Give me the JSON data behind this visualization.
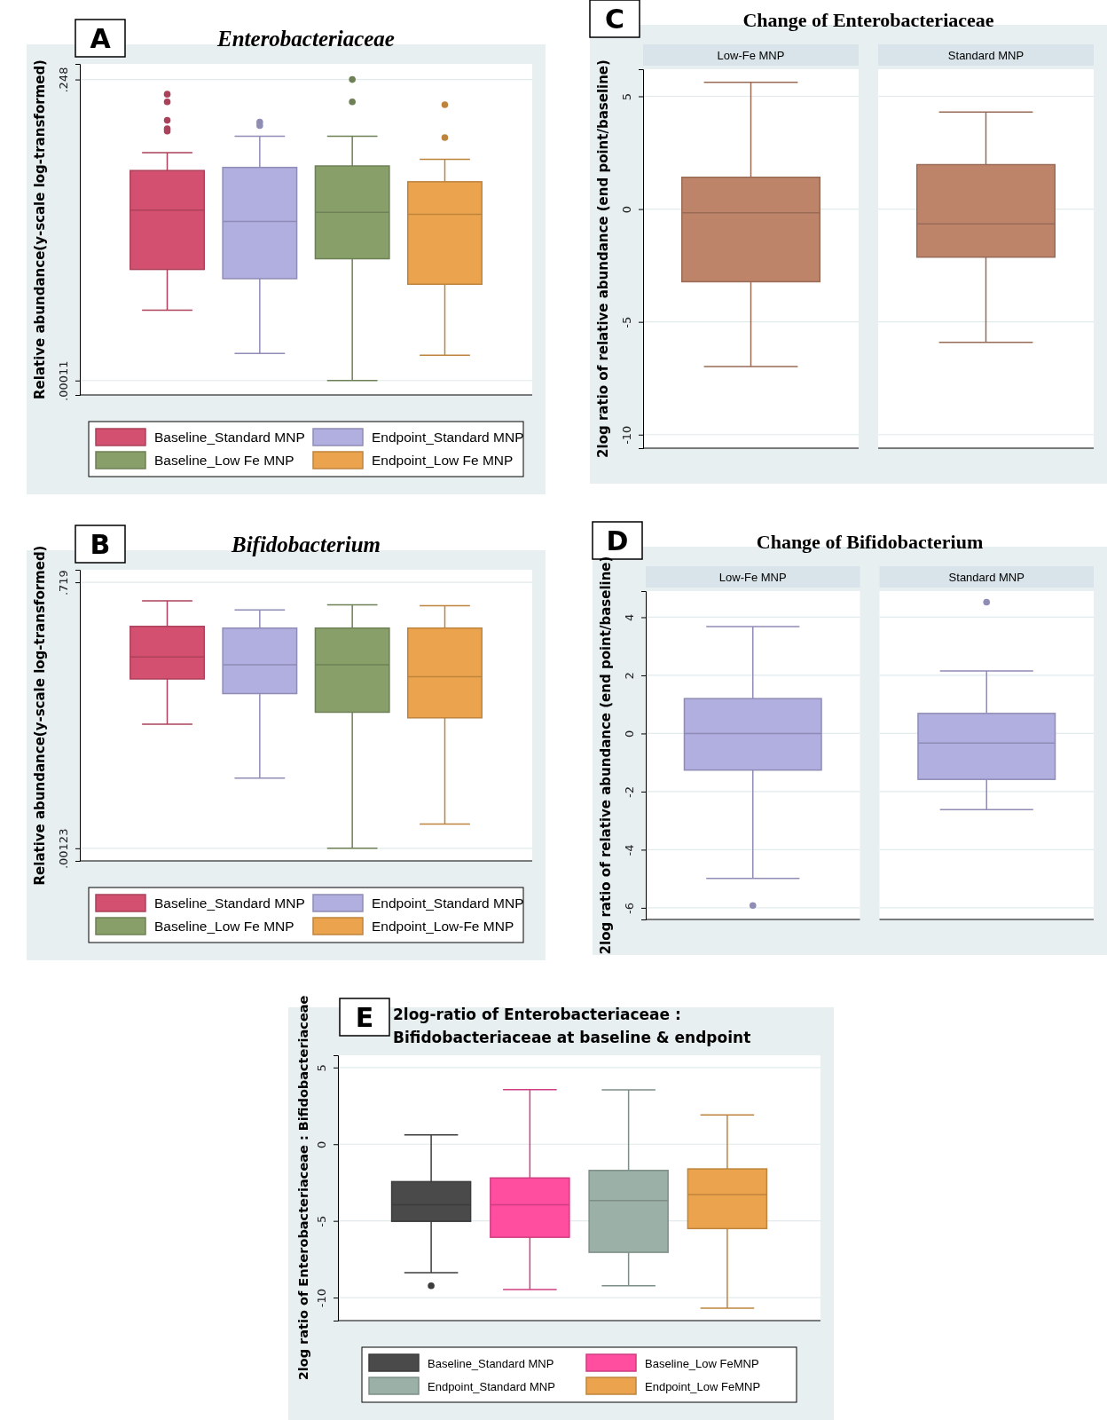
{
  "chart_data": [
    {
      "type": "box",
      "title": "Enterobacteriaceae",
      "ylabel": "Relative abundance(y-scale log-transformed)",
      "annotations": [
        "A"
      ],
      "log": true,
      "grid": "y",
      "legend": "bottom",
      "ylim": [
        7.6e-05,
        0.37
      ],
      "yticks": [
        {
          "value": 0.248,
          "label": ".248"
        },
        {
          "value": 0.00011,
          "label": ".00011"
        }
      ],
      "categories": [
        null
      ],
      "series": [
        {
          "name": "Baseline_Standard MNP",
          "color": "#d45070",
          "boxes": [
            {
              "low": 0.00067,
              "q1": 0.0019,
              "median": 0.0087,
              "q3": 0.024,
              "high": 0.038,
              "outliers": [
                0.17,
                0.14,
                0.087,
                0.07,
                0.066
              ]
            }
          ]
        },
        {
          "name": "Endpoint_Standard MNP",
          "color": "#b1aee0",
          "boxes": [
            {
              "low": 0.00022,
              "q1": 0.0015,
              "median": 0.0065,
              "q3": 0.026,
              "high": 0.058,
              "outliers": [
                0.083,
                0.076
              ]
            }
          ]
        },
        {
          "name": "Baseline_Low Fe MNP",
          "color": "#889f6a",
          "boxes": [
            {
              "low": 0.00011,
              "q1": 0.0025,
              "median": 0.0082,
              "q3": 0.027,
              "high": 0.058,
              "outliers": [
                0.248,
                0.14
              ]
            }
          ]
        },
        {
          "name": "Endpoint_Low Fe MNP",
          "color": "#eba44d",
          "boxes": [
            {
              "low": 0.00021,
              "q1": 0.0013,
              "median": 0.0078,
              "q3": 0.018,
              "high": 0.032,
              "outliers": [
                0.13,
                0.056
              ]
            }
          ]
        }
      ]
    },
    {
      "type": "box",
      "title": "Bifidobacterium",
      "ylabel": "Relative abundance(y-scale log-transformed)",
      "annotations": [
        "B"
      ],
      "log": true,
      "grid": "y",
      "legend": "bottom",
      "ylim": [
        0.00091,
        0.97
      ],
      "yticks": [
        {
          "value": 0.719,
          "label": ".719"
        },
        {
          "value": 0.00123,
          "label": ".00123"
        }
      ],
      "categories": [
        null
      ],
      "series": [
        {
          "name": "Baseline_Standard MNP",
          "color": "#d45070",
          "boxes": [
            {
              "low": 0.024,
              "q1": 0.071,
              "median": 0.12,
              "q3": 0.25,
              "high": 0.46
            }
          ]
        },
        {
          "name": "Endpoint_Standard MNP",
          "color": "#b1aee0",
          "boxes": [
            {
              "low": 0.0066,
              "q1": 0.05,
              "median": 0.1,
              "q3": 0.24,
              "high": 0.37
            }
          ]
        },
        {
          "name": "Baseline_Low Fe MNP",
          "color": "#889f6a",
          "boxes": [
            {
              "low": 0.00123,
              "q1": 0.032,
              "median": 0.1,
              "q3": 0.24,
              "high": 0.42
            }
          ]
        },
        {
          "name": "Endpoint_Low-Fe MNP",
          "color": "#eba44d",
          "boxes": [
            {
              "low": 0.0022,
              "q1": 0.028,
              "median": 0.075,
              "q3": 0.24,
              "high": 0.41
            }
          ]
        }
      ]
    },
    {
      "type": "box",
      "title": "Change of Enterobacteriaceae",
      "ylabel": "2log ratio of relative abundance (end point/baseline)",
      "annotations": [
        "C"
      ],
      "grid": "y",
      "ylim": [
        -10.6,
        6.2
      ],
      "yticks": [
        5,
        0,
        -5,
        -10
      ],
      "categories": [
        "Low-Fe MNP",
        "Standard MNP"
      ],
      "series": [
        {
          "color": "#bd846a",
          "boxes": [
            {
              "low": -6.98,
              "q1": -3.22,
              "median": -0.16,
              "q3": 1.41,
              "high": 5.62
            },
            {
              "low": -5.91,
              "q1": -2.13,
              "median": -0.66,
              "q3": 1.97,
              "high": 4.3
            }
          ]
        }
      ]
    },
    {
      "type": "box",
      "title": "Change of Bifidobacterium",
      "ylabel": "2log ratio of relative abundance (end point/baseline)",
      "annotations": [
        "D"
      ],
      "grid": "y",
      "ylim": [
        -6.4,
        4.9
      ],
      "yticks": [
        4,
        2,
        0,
        -2,
        -4,
        -6
      ],
      "categories": [
        "Low-Fe MNP",
        "Standard MNP"
      ],
      "series": [
        {
          "color": "#b1aee0",
          "boxes": [
            {
              "low": -4.99,
              "q1": -1.26,
              "median": 0,
              "q3": 1.2,
              "high": 3.68,
              "outliers": [
                -5.92
              ]
            },
            {
              "low": -2.62,
              "q1": -1.58,
              "median": -0.33,
              "q3": 0.69,
              "high": 2.15,
              "outliers": [
                4.52
              ]
            }
          ]
        }
      ]
    },
    {
      "type": "box",
      "title": "2log-ratio of Enterobacteriaceae : Bifidobacteriaceae at baseline & endpoint",
      "ylabel": "2log ratio of Enterobacteriaceae : Bifidobacteriaceae",
      "annotations": [
        "E"
      ],
      "grid": "y",
      "legend": "bottom",
      "ylim": [
        -11.5,
        5.8
      ],
      "yticks": [
        5,
        0,
        -5,
        -10
      ],
      "categories": [
        null
      ],
      "series": [
        {
          "name": "Baseline_Standard MNP",
          "color": "#4a4a4a",
          "boxes": [
            {
              "low": -8.37,
              "q1": -5.03,
              "median": -3.95,
              "q3": -2.44,
              "high": 0.61,
              "outliers": [
                -9.23
              ]
            }
          ]
        },
        {
          "name": "Baseline_Low FeMNP",
          "color": "#ff4da0",
          "boxes": [
            {
              "low": -9.47,
              "q1": -6.07,
              "median": -3.95,
              "q3": -2.2,
              "high": 3.56
            }
          ]
        },
        {
          "name": "Endpoint_Standard MNP",
          "color": "#9bb0a6",
          "boxes": [
            {
              "low": -9.23,
              "q1": -7.05,
              "median": -3.67,
              "q3": -1.71,
              "high": 3.54
            }
          ]
        },
        {
          "name": "Endpoint_Low FeMNP",
          "color": "#eba44d",
          "boxes": [
            {
              "low": -10.69,
              "q1": -5.5,
              "median": -3.28,
              "q3": -1.61,
              "high": 1.91
            }
          ]
        }
      ]
    }
  ]
}
